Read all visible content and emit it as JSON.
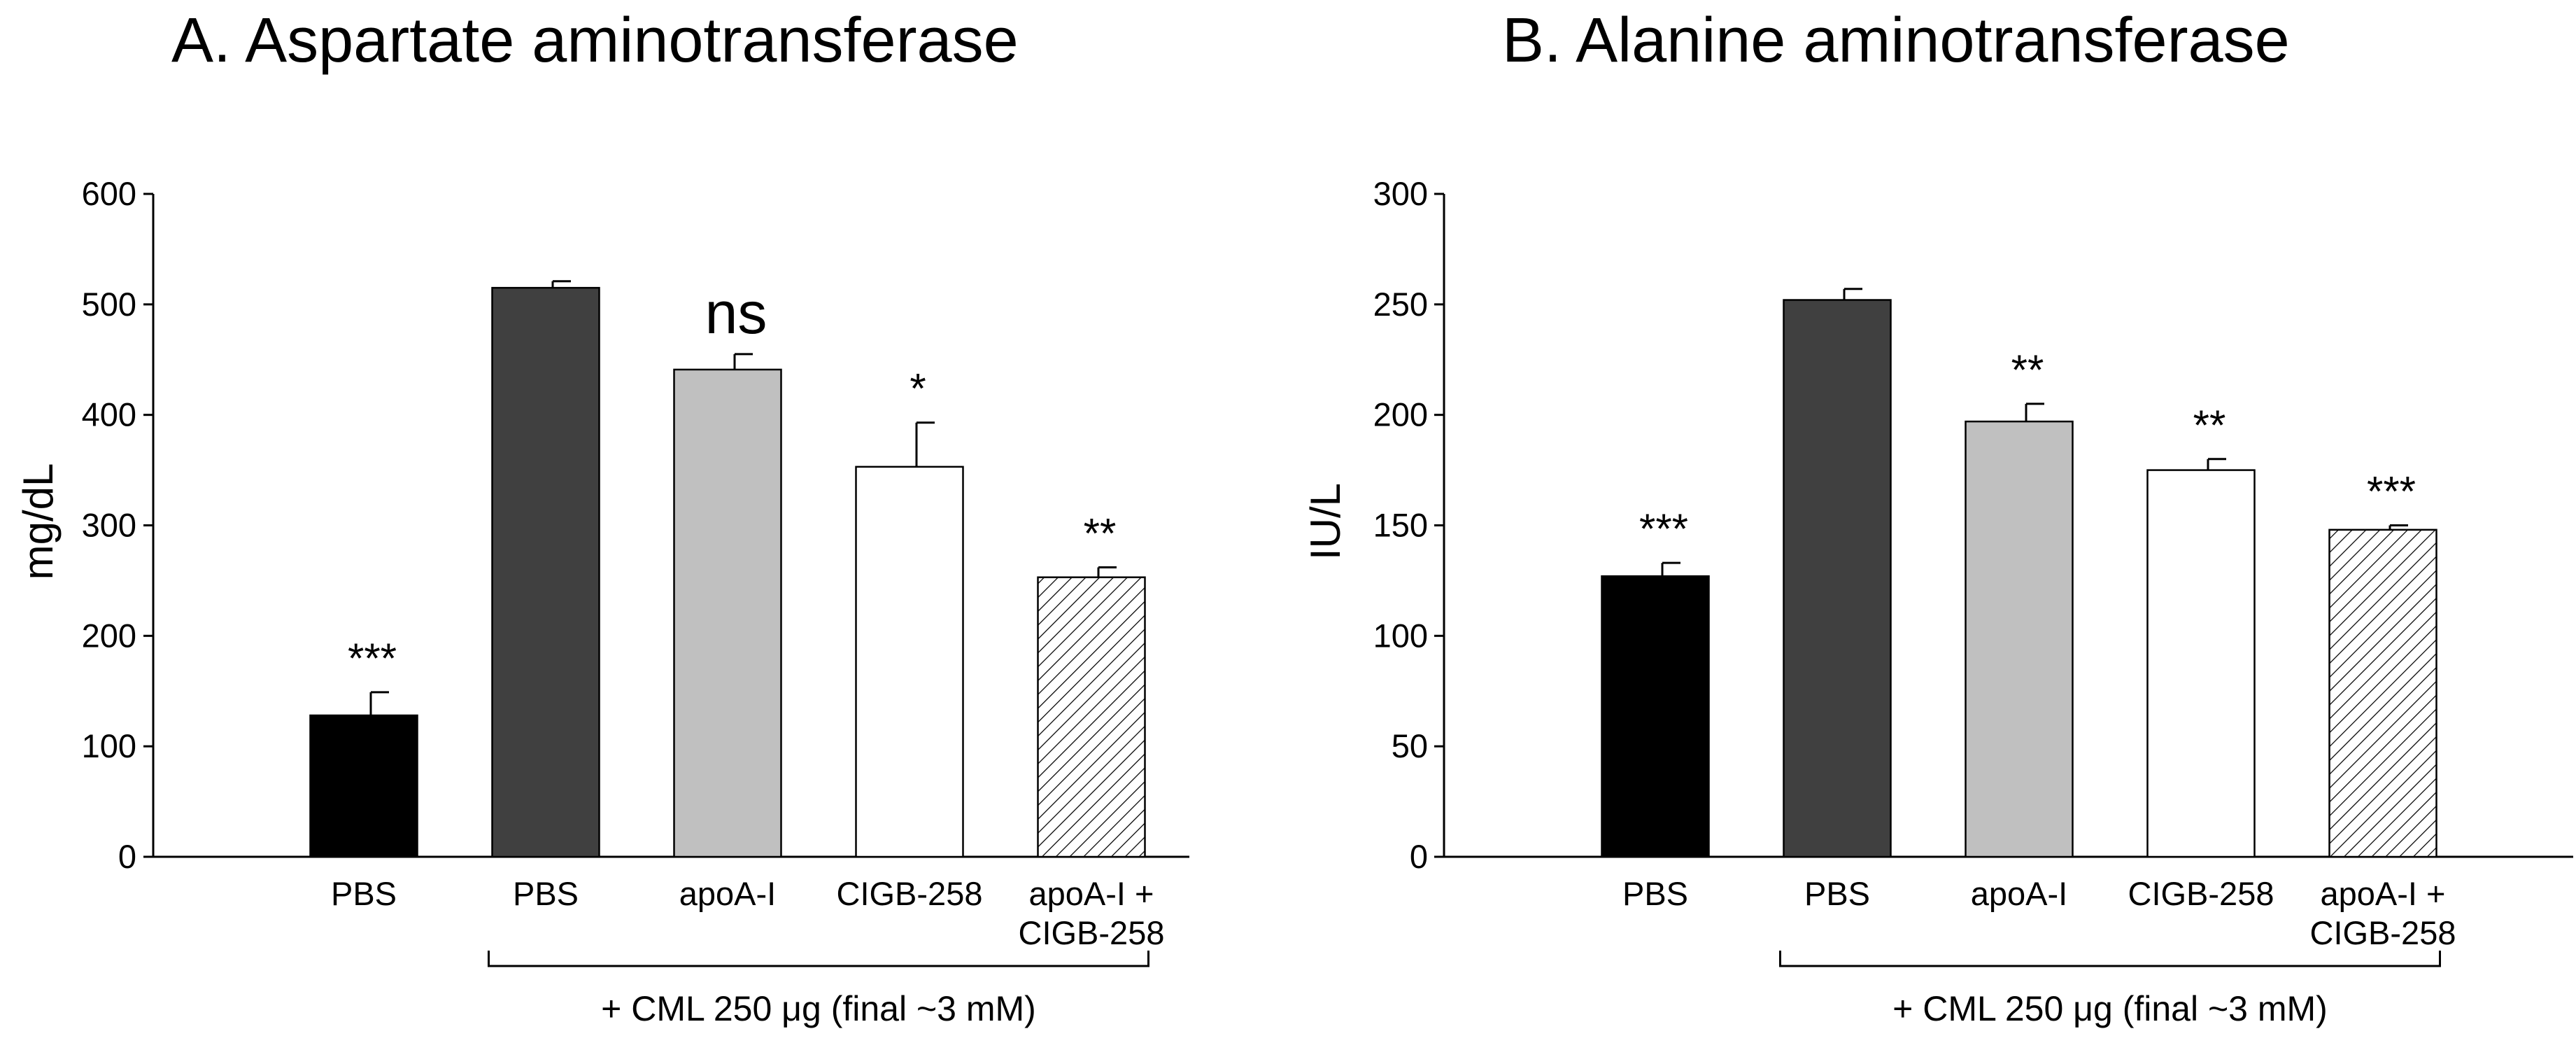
{
  "chart_data": [
    {
      "type": "bar",
      "title": "A. Aspartate aminotransferase",
      "ylabel": "mg/dL",
      "xlabel": "",
      "ylim": [
        0,
        600
      ],
      "yticks": [
        "0",
        "100",
        "200",
        "300",
        "400",
        "500",
        "600"
      ],
      "categories": [
        "PBS",
        "PBS",
        "apoA-I",
        "CIGB-258",
        "apoA-I +\nCIGB-258"
      ],
      "values": [
        128,
        515,
        441,
        353,
        253
      ],
      "errors": [
        21,
        6,
        14,
        40,
        9
      ],
      "annotations": [
        "***",
        "",
        "ns",
        "*",
        "**"
      ],
      "bar_colors": [
        "#000000",
        "#404040",
        "#c0c0c0",
        "#ffffff",
        "hatch"
      ],
      "bracket_label": "+ CML 250 μg (final ~3 mM)",
      "bracket_span": [
        1,
        4
      ]
    },
    {
      "type": "bar",
      "title": "B. Alanine aminotransferase",
      "ylabel": "IU/L",
      "xlabel": "",
      "ylim": [
        0,
        300
      ],
      "yticks": [
        "0",
        "50",
        "100",
        "150",
        "200",
        "250",
        "300"
      ],
      "categories": [
        "PBS",
        "PBS",
        "apoA-I",
        "CIGB-258",
        "apoA-I +\nCIGB-258"
      ],
      "values": [
        127,
        252,
        197,
        175,
        148
      ],
      "errors": [
        6,
        5,
        8,
        5,
        2
      ],
      "annotations": [
        "***",
        "",
        "**",
        "**",
        "***"
      ],
      "bar_colors": [
        "#000000",
        "#404040",
        "#c0c0c0",
        "#ffffff",
        "hatch"
      ],
      "bracket_label": "+ CML 250 μg (final ~3 mM)",
      "bracket_span": [
        1,
        4
      ]
    }
  ]
}
